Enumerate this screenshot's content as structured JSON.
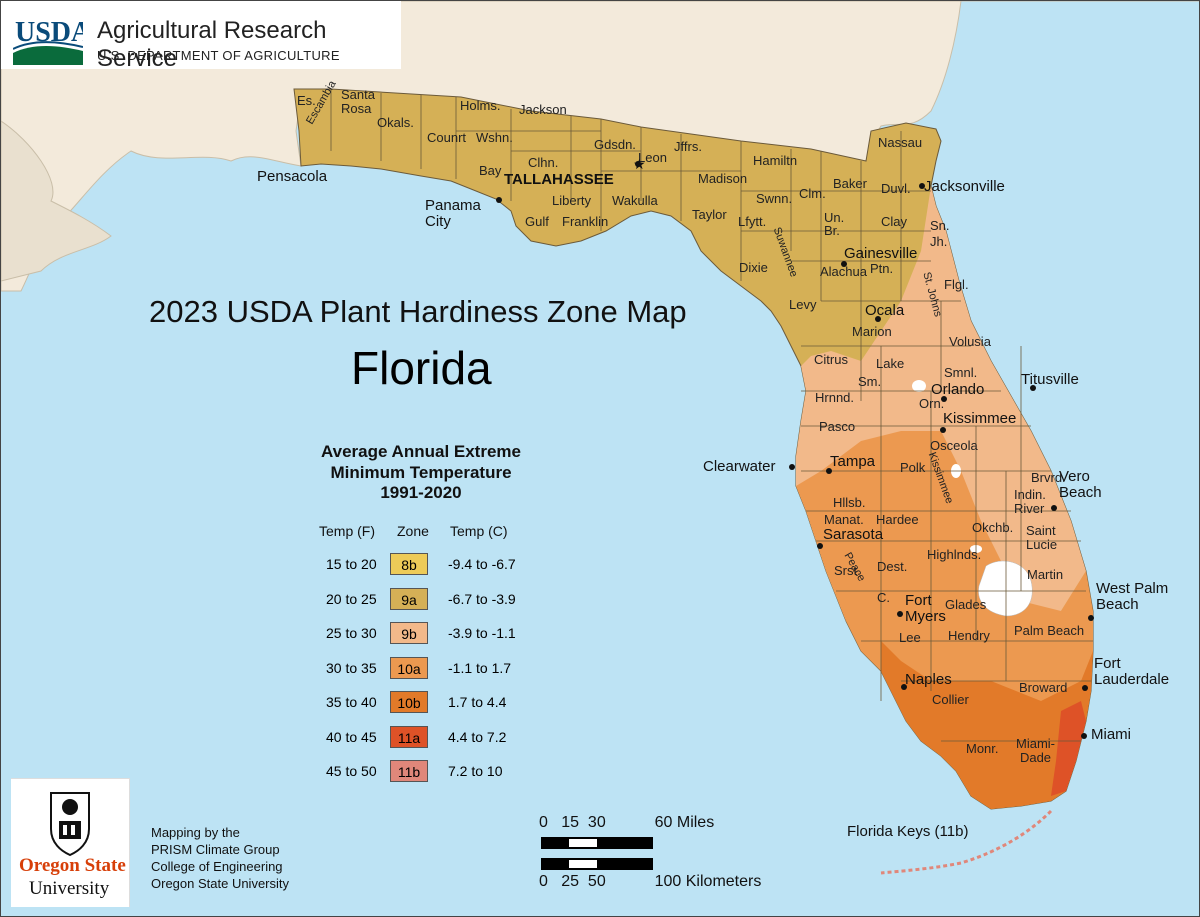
{
  "header": {
    "agency_logo_text": "USDA",
    "agency_name": "Agricultural Research Service",
    "department": "U.S. DEPARTMENT OF AGRICULTURE"
  },
  "title": "2023 USDA Plant Hardiness Zone Map",
  "subtitle": "Florida",
  "legend": {
    "title_lines": [
      "Average Annual Extreme",
      "Minimum Temperature",
      "1991-2020"
    ],
    "col_temp_f": "Temp (F)",
    "col_zone": "Zone",
    "col_temp_c": "Temp (C)",
    "rows": [
      {
        "temp_f": "15 to 20",
        "zone": "8b",
        "temp_c": "-9.4 to -6.7",
        "color": "#edcb58"
      },
      {
        "temp_f": "20 to 25",
        "zone": "9a",
        "temp_c": "-6.7 to -3.9",
        "color": "#d5b056"
      },
      {
        "temp_f": "25 to 30",
        "zone": "9b",
        "temp_c": "-3.9 to -1.1",
        "color": "#f2b98a"
      },
      {
        "temp_f": "30 to 35",
        "zone": "10a",
        "temp_c": "-1.1 to 1.7",
        "color": "#ec9950"
      },
      {
        "temp_f": "35 to 40",
        "zone": "10b",
        "temp_c": "1.7 to 4.4",
        "color": "#e27a29"
      },
      {
        "temp_f": "40 to 45",
        "zone": "11a",
        "temp_c": "4.4 to 7.2",
        "color": "#de5227"
      },
      {
        "temp_f": "45 to 50",
        "zone": "11b",
        "temp_c": "7.2 to 10",
        "color": "#e0877a"
      }
    ]
  },
  "credits": {
    "university_line1": "Oregon State",
    "university_line2": "University",
    "lines": [
      "Mapping by the",
      "PRISM Climate Group",
      "College of Engineering",
      "Oregon State University"
    ]
  },
  "scale": {
    "miles_label": "0   15  30           60 Miles",
    "km_label": "0   25  50           100 Kilometers"
  },
  "cities": {
    "pensacola": "Pensacola",
    "panama_city": "Panama\nCity",
    "tallahassee": "TALLAHASSEE",
    "jacksonville": "Jacksonville",
    "gainesville": "Gainesville",
    "ocala": "Ocala",
    "orlando": "Orlando",
    "titusville": "Titusville",
    "kissimmee": "Kissimmee",
    "clearwater": "Clearwater",
    "tampa": "Tampa",
    "vero_beach": "Vero\nBeach",
    "sarasota": "Sarasota",
    "west_palm_beach": "West Palm\nBeach",
    "fort_myers": "Fort\nMyers",
    "fort_lauderdale": "Fort\nLauderdale",
    "naples": "Naples",
    "miami": "Miami",
    "florida_keys": "Florida Keys (11b)"
  },
  "counties": {
    "es": "Es.",
    "santa_rosa": "Santa\nRosa",
    "okals": "Okals.",
    "holms": "Holms.",
    "jackson": "Jackson",
    "escambia": "Escambia",
    "countt": "Counrt",
    "wshn": "Wshn.",
    "gdsdn": "Gdsdn.",
    "leon": "Leon",
    "jffrs": "Jffrs.",
    "nassau": "Nassau",
    "hamiltn": "Hamiltn",
    "bay": "Bay",
    "clhn": "Clhn.",
    "madison": "Madison",
    "swnn": "Swnn.",
    "clm": "Clm.",
    "baker": "Baker",
    "duvl": "Duvl.",
    "liberty": "Liberty",
    "wakulla": "Wakulla",
    "taylor": "Taylor",
    "lfytt": "Lfytt.",
    "un": "Un.",
    "clay": "Clay",
    "sn": "Sn.",
    "jh": "Jh.",
    "gulf": "Gulf",
    "franklin": "Franklin",
    "br": "Br.",
    "suwannee": "Suwannee",
    "dixie": "Dixie",
    "alachua": "Alachua",
    "ptn": "Ptn.",
    "st_johns": "St. Johns",
    "flgl": "Flgl.",
    "levy": "Levy",
    "marion": "Marion",
    "volusia": "Volusia",
    "citrus": "Citrus",
    "lake": "Lake",
    "smnl": "Smnl.",
    "sm": "Sm.",
    "hrnnd": "Hrnnd.",
    "orn": "Orn.",
    "pasco": "Pasco",
    "osceola": "Osceola",
    "polk": "Polk",
    "brvrd": "Brvrd.",
    "indin_river": "Indin.\nRiver",
    "hllsb": "Hllsb.",
    "manat": "Manat.",
    "hardee": "Hardee",
    "okchb": "Okchb.",
    "saint_lucie": "Saint\nLucie",
    "highlnds": "Highlnds.",
    "kissimmee_river": "Kissimmee",
    "srst": "Srst.",
    "dest": "Dest.",
    "peace": "Peace",
    "martin": "Martin",
    "c": "C.",
    "glades": "Glades",
    "lee": "Lee",
    "hendry": "Hendry",
    "palm_beach": "Palm Beach",
    "collier": "Collier",
    "broward": "Broward",
    "monr": "Monr.",
    "miami_dade": "Miami-\nDade"
  }
}
